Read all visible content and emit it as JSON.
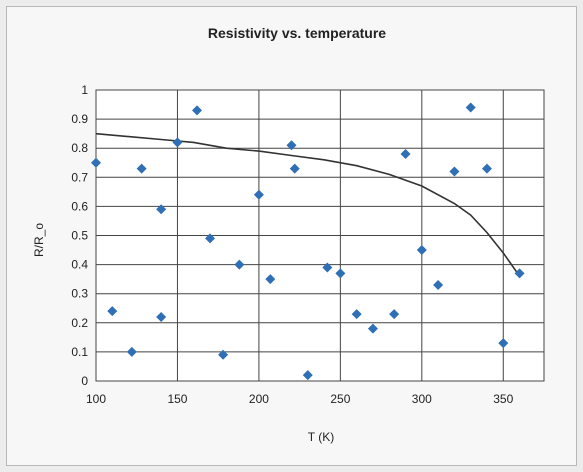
{
  "chart_data": {
    "type": "scatter",
    "title": "Resistivity vs. temperature",
    "xlabel": "T (K)",
    "ylabel": "R/R_o",
    "xlim": [
      100,
      375
    ],
    "ylim": [
      0,
      1
    ],
    "grid": true,
    "legend": "none",
    "x_ticks": [
      "100",
      "150",
      "200",
      "250",
      "300",
      "350"
    ],
    "y_ticks": [
      "0",
      "0.1",
      "0.2",
      "0.3",
      "0.4",
      "0.5",
      "0.6",
      "0.7",
      "0.8",
      "0.9",
      "1"
    ],
    "colors": {
      "points": "#2f6fb5",
      "trend": "#333333",
      "grid": "#444444",
      "plot_bg": "#ffffff"
    },
    "series": [
      {
        "kind": "points",
        "x": [
          100,
          110,
          122,
          128,
          140,
          140,
          150,
          162,
          170,
          178,
          188,
          200,
          207,
          220,
          222,
          230,
          242,
          250,
          260,
          270,
          283,
          290,
          300,
          310,
          320,
          330,
          340,
          350,
          360
        ],
        "y": [
          0.75,
          0.24,
          0.1,
          0.73,
          0.59,
          0.22,
          0.82,
          0.93,
          0.49,
          0.09,
          0.4,
          0.64,
          0.35,
          0.81,
          0.73,
          0.02,
          0.39,
          0.37,
          0.23,
          0.18,
          0.23,
          0.78,
          0.45,
          0.33,
          0.72,
          0.94,
          0.73,
          0.13,
          0.37
        ]
      },
      {
        "kind": "trend",
        "x": [
          100,
          120,
          140,
          160,
          180,
          200,
          220,
          240,
          260,
          280,
          300,
          320,
          330,
          340,
          350,
          360
        ],
        "y": [
          0.85,
          0.84,
          0.83,
          0.82,
          0.8,
          0.79,
          0.775,
          0.76,
          0.74,
          0.71,
          0.67,
          0.61,
          0.57,
          0.51,
          0.44,
          0.36
        ]
      }
    ]
  }
}
